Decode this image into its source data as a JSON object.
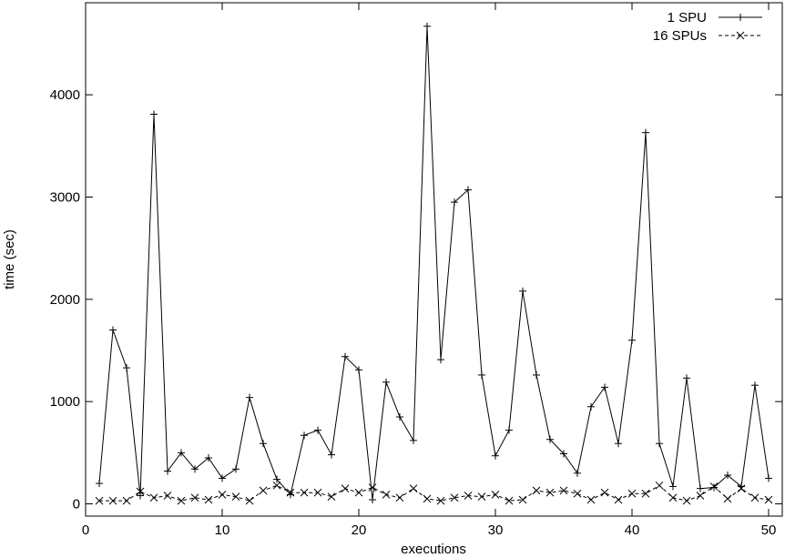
{
  "chart_data": {
    "type": "line",
    "xlabel": "executions",
    "ylabel": "time (sec)",
    "xlim": [
      0,
      51
    ],
    "ylim": [
      -120,
      4900
    ],
    "xticks": [
      0,
      10,
      20,
      30,
      40,
      50
    ],
    "yticks": [
      0,
      1000,
      2000,
      3000,
      4000
    ],
    "grid": false,
    "legend_position": "top-right",
    "series": [
      {
        "name": "1 SPU",
        "line_style": "solid",
        "marker": "plus",
        "color": "#000000",
        "x": [
          1,
          2,
          3,
          4,
          5,
          6,
          7,
          8,
          9,
          10,
          11,
          12,
          13,
          14,
          15,
          16,
          17,
          18,
          19,
          20,
          21,
          22,
          23,
          24,
          25,
          26,
          27,
          28,
          29,
          30,
          31,
          32,
          33,
          34,
          35,
          36,
          37,
          38,
          39,
          40,
          41,
          42,
          43,
          44,
          45,
          46,
          47,
          48,
          49,
          50
        ],
        "values": [
          200,
          1700,
          1330,
          80,
          3810,
          320,
          500,
          340,
          450,
          250,
          340,
          1040,
          590,
          240,
          90,
          670,
          720,
          480,
          1440,
          1310,
          40,
          1190,
          850,
          620,
          4670,
          1410,
          2950,
          3070,
          1260,
          470,
          720,
          2080,
          1260,
          630,
          490,
          300,
          950,
          1140,
          590,
          1600,
          3630,
          590,
          170,
          1230,
          150,
          160,
          280,
          170,
          1160,
          250
        ]
      },
      {
        "name": "16 SPUs",
        "line_style": "dashed",
        "marker": "cross",
        "color": "#000000",
        "x": [
          1,
          2,
          3,
          4,
          5,
          6,
          7,
          8,
          9,
          10,
          11,
          12,
          13,
          14,
          15,
          16,
          17,
          18,
          19,
          20,
          21,
          22,
          23,
          24,
          25,
          26,
          27,
          28,
          29,
          30,
          31,
          32,
          33,
          34,
          35,
          36,
          37,
          38,
          39,
          40,
          41,
          42,
          43,
          44,
          45,
          46,
          47,
          48,
          49,
          50
        ],
        "values": [
          30,
          30,
          30,
          120,
          60,
          80,
          30,
          60,
          40,
          90,
          70,
          30,
          130,
          180,
          110,
          110,
          110,
          70,
          150,
          110,
          160,
          90,
          60,
          150,
          50,
          30,
          60,
          80,
          70,
          90,
          30,
          40,
          130,
          110,
          130,
          100,
          40,
          110,
          40,
          100,
          100,
          180,
          60,
          30,
          80,
          170,
          50,
          150,
          60,
          40
        ]
      }
    ]
  }
}
